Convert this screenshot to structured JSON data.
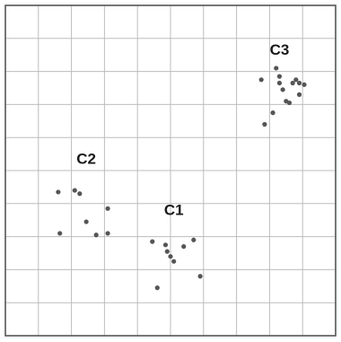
{
  "chart_data": {
    "type": "scatter",
    "title": "",
    "xlabel": "",
    "ylabel": "",
    "xlim": [
      0,
      10
    ],
    "ylim": [
      0,
      10
    ],
    "grid": true,
    "colors": {
      "background": "#ffffff",
      "grid": "#bdbdbd",
      "frame": "#555555",
      "points": "#555555",
      "labels": "#1a1a1a"
    },
    "series": [
      {
        "label": "C1",
        "label_at": [
          5.1,
          3.65
        ],
        "points": [
          [
            4.45,
            2.85
          ],
          [
            4.85,
            2.75
          ],
          [
            4.9,
            2.55
          ],
          [
            5.0,
            2.4
          ],
          [
            5.1,
            2.25
          ],
          [
            5.4,
            2.7
          ],
          [
            5.7,
            2.9
          ],
          [
            5.9,
            1.8
          ],
          [
            4.6,
            1.45
          ]
        ]
      },
      {
        "label": "C2",
        "label_at": [
          2.45,
          5.2
        ],
        "points": [
          [
            1.6,
            4.35
          ],
          [
            2.1,
            4.4
          ],
          [
            2.25,
            4.3
          ],
          [
            3.1,
            3.85
          ],
          [
            2.45,
            3.45
          ],
          [
            1.65,
            3.1
          ],
          [
            2.75,
            3.05
          ],
          [
            3.1,
            3.1
          ]
        ]
      },
      {
        "label": "C3",
        "label_at": [
          8.3,
          8.5
        ],
        "points": [
          [
            8.2,
            8.1
          ],
          [
            8.3,
            7.85
          ],
          [
            8.3,
            7.65
          ],
          [
            7.75,
            7.75
          ],
          [
            8.4,
            7.45
          ],
          [
            8.7,
            7.65
          ],
          [
            8.8,
            7.75
          ],
          [
            8.9,
            7.65
          ],
          [
            9.05,
            7.6
          ],
          [
            8.9,
            7.3
          ],
          [
            8.6,
            7.05
          ],
          [
            8.5,
            7.1
          ],
          [
            8.1,
            6.75
          ],
          [
            7.85,
            6.4
          ]
        ]
      }
    ]
  }
}
